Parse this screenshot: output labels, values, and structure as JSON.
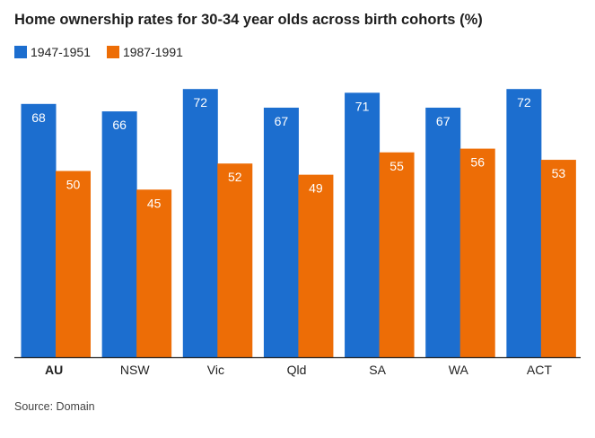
{
  "chart_data": {
    "type": "bar",
    "title": "Home ownership rates for 30-34 year olds across birth cohorts (%)",
    "categories": [
      "AU",
      "NSW",
      "Vic",
      "Qld",
      "SA",
      "WA",
      "ACT"
    ],
    "series": [
      {
        "name": "1947-1951",
        "values": [
          68,
          66,
          72,
          67,
          71,
          67,
          72
        ],
        "color": "#1c6ecf"
      },
      {
        "name": "1987-1991",
        "values": [
          50,
          45,
          52,
          49,
          55,
          56,
          53
        ],
        "color": "#ed6d06"
      }
    ],
    "ylim": [
      0,
      70
    ],
    "grid": false,
    "legend_position": "top-left",
    "xlabel": "",
    "ylabel": "",
    "bold_category": "AU"
  },
  "source": "Source: Domain"
}
